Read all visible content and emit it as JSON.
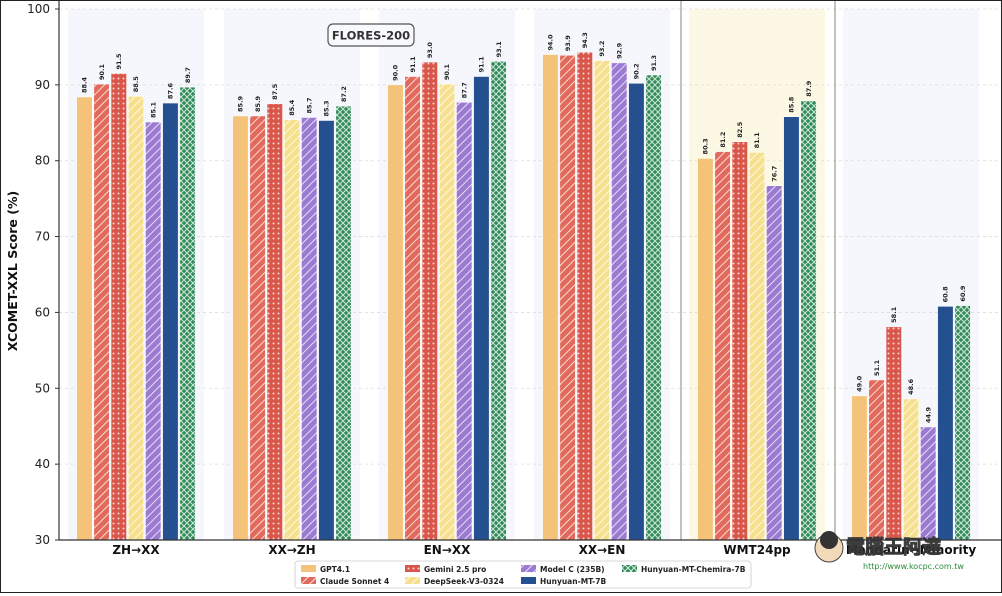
{
  "chart_data": {
    "type": "bar",
    "ylabel": "XCOMET-XXL Score (%)",
    "xlabel": "",
    "ylim": [
      30,
      100
    ],
    "yticks": [
      30,
      40,
      50,
      60,
      70,
      80,
      90,
      100
    ],
    "grid": true,
    "legend_position": "bottom-center",
    "annotations": [
      {
        "text": "FLORES-200",
        "style": "boxed",
        "placement": "above first four groups"
      }
    ],
    "categories": [
      "ZH→XX",
      "XX→ZH",
      "EN→XX",
      "XX→EN",
      "WMT24pp",
      "Mandarin↔Minority"
    ],
    "series": [
      {
        "name": "GPT4.1",
        "color": "#F5C27A",
        "pattern": "solid",
        "values": [
          88.4,
          85.9,
          90.0,
          94.0,
          80.3,
          49.0
        ]
      },
      {
        "name": "Claude Sonnet 4",
        "color": "#E26A5C",
        "pattern": "diagonal",
        "values": [
          90.1,
          85.9,
          91.1,
          93.9,
          81.2,
          51.1
        ]
      },
      {
        "name": "Gemini 2.5 pro",
        "color": "#D9574A",
        "pattern": "dots",
        "values": [
          91.5,
          87.5,
          93.0,
          94.3,
          82.5,
          58.1
        ]
      },
      {
        "name": "DeepSeek-V3-0324",
        "color": "#F6E08E",
        "pattern": "diagonal",
        "values": [
          88.5,
          85.4,
          90.1,
          93.2,
          81.1,
          48.6
        ]
      },
      {
        "name": "Model C (235B)",
        "color": "#9B7AD1",
        "pattern": "diagonal",
        "values": [
          85.1,
          85.7,
          87.7,
          92.9,
          76.7,
          44.9
        ]
      },
      {
        "name": "Hunyuan-MT-7B",
        "color": "#24508F",
        "pattern": "solid",
        "values": [
          87.6,
          85.3,
          91.1,
          90.2,
          85.8,
          60.8
        ]
      },
      {
        "name": "Hunyuan-MT-Chemira-7B",
        "color": "#2E8B57",
        "pattern": "crosshatch",
        "values": [
          89.7,
          87.2,
          93.1,
          91.3,
          87.9,
          60.9
        ]
      }
    ]
  },
  "watermark": {
    "text": "電腦王阿達",
    "url": "http://www.kocpc.com.tw"
  }
}
